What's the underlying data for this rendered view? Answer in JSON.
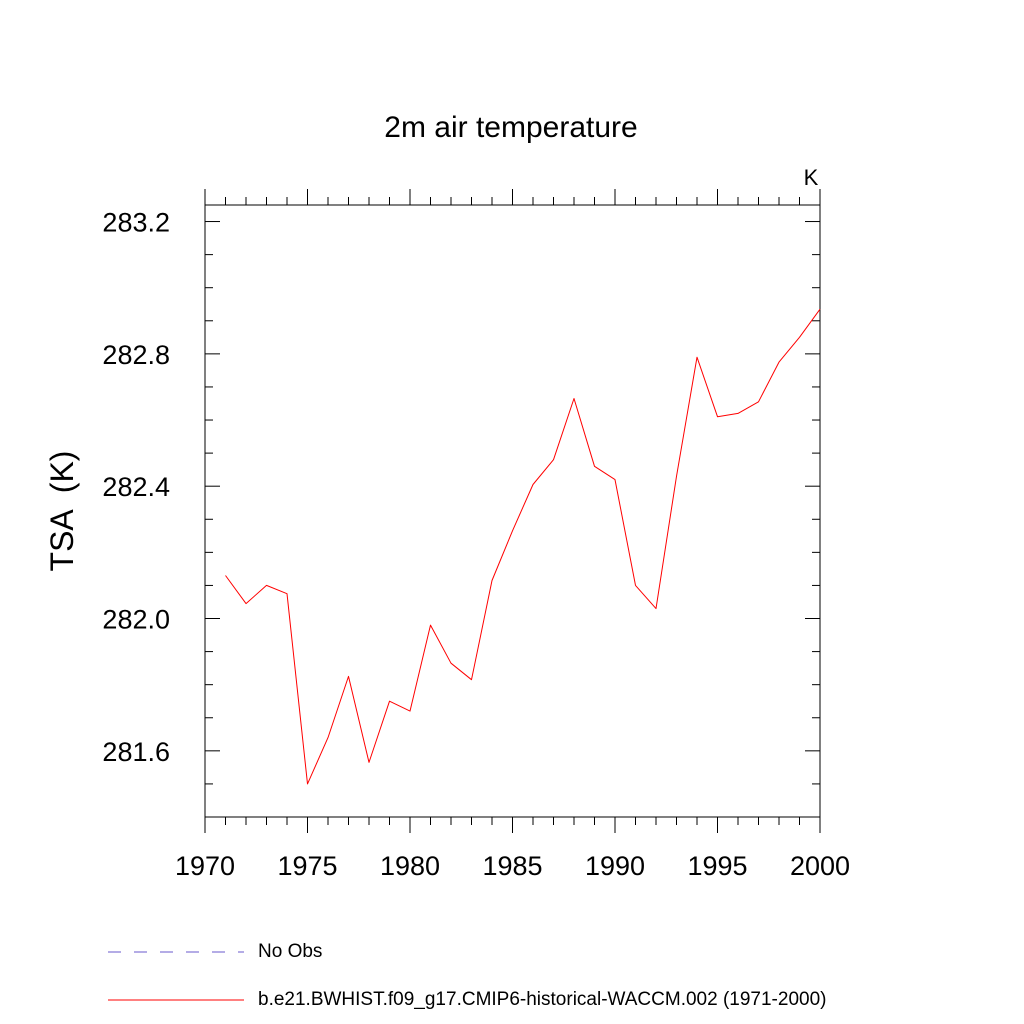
{
  "chart_data": {
    "type": "line",
    "title": "2m air temperature",
    "units_label": "K",
    "ylabel": "TSA  (K)",
    "xlabel": "",
    "xlim": [
      1970,
      2000
    ],
    "ylim": [
      281.4,
      283.25
    ],
    "xticks": [
      1970,
      1975,
      1980,
      1985,
      1990,
      1995,
      2000
    ],
    "xtick_labels": [
      "1970",
      "1975",
      "1980",
      "1985",
      "1990",
      "1995",
      "2000"
    ],
    "yticks": [
      281.6,
      282.0,
      282.4,
      282.8,
      283.2
    ],
    "ytick_labels": [
      "281.6",
      "282.0",
      "282.4",
      "282.8",
      "283.2"
    ],
    "grid": false,
    "series": [
      {
        "name": "b.e21.BWHIST.f09_g17.CMIP6-historical-WACCM.002 (1971-2000)",
        "color": "#ff0000",
        "x": [
          1971,
          1972,
          1973,
          1974,
          1975,
          1976,
          1977,
          1978,
          1979,
          1980,
          1981,
          1982,
          1983,
          1984,
          1985,
          1986,
          1987,
          1988,
          1989,
          1990,
          1991,
          1992,
          1993,
          1994,
          1995,
          1996,
          1997,
          1998,
          1999,
          2000
        ],
        "values": [
          282.13,
          282.045,
          282.1,
          282.075,
          281.5,
          281.64,
          281.825,
          281.565,
          281.75,
          281.72,
          281.98,
          281.865,
          281.815,
          282.115,
          282.265,
          282.405,
          282.48,
          282.665,
          282.46,
          282.42,
          282.1,
          282.03,
          282.43,
          282.79,
          282.61,
          282.62,
          282.655,
          282.775,
          282.85,
          282.935
        ]
      }
    ],
    "legend": {
      "placement": "bottom",
      "entries": [
        {
          "label": "No Obs",
          "color": "#6a5acd",
          "style": "dashed"
        },
        {
          "label": "b.e21.BWHIST.f09_g17.CMIP6-historical-WACCM.002 (1971-2000)",
          "color": "#ff0000",
          "style": "solid"
        }
      ]
    }
  }
}
